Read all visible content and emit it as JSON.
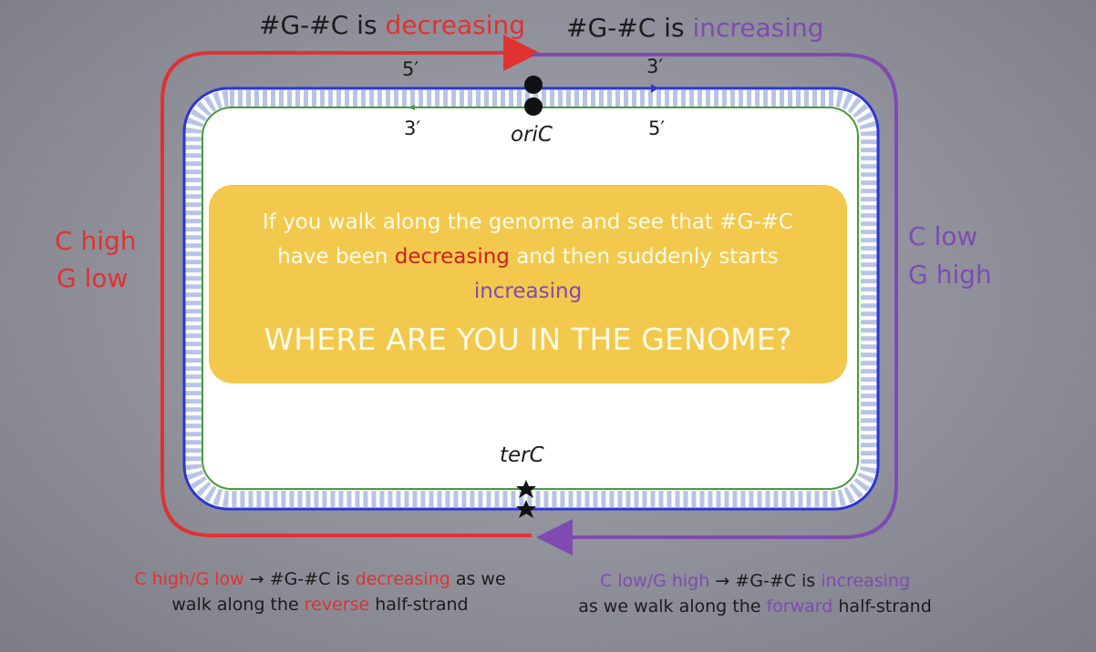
{
  "top": {
    "left_prefix": "#G-#C is ",
    "left_emph": "decreasing",
    "right_prefix": "#G-#C is ",
    "right_emph": "increasing"
  },
  "strand": {
    "top_left_5": "5′",
    "top_right_3": "3′",
    "inner_left_3": "3′",
    "inner_right_5": "5′"
  },
  "labels": {
    "oric": "oriC",
    "terc": "terC"
  },
  "sides": {
    "left_line1": "C high",
    "left_line2": "G low",
    "right_line1": "C low",
    "right_line2": "G high"
  },
  "callout": {
    "line1": "If you walk along the genome and see that  #G-#C",
    "line2_prefix": "have been ",
    "line2_emph": "decreasing",
    "line2_suffix": "  and then suddenly starts",
    "line3": "increasing",
    "question": "WHERE ARE YOU IN THE  GENOME?"
  },
  "caption_left": {
    "a": "C high/G low",
    "b": " → #G-#C is ",
    "c": "decreasing",
    "d": " as we",
    "e": "walk along the ",
    "f": "reverse",
    "g": " half-strand"
  },
  "caption_right": {
    "a": "C low/G high",
    "b": " → #G-#C is ",
    "c": "increasing",
    "d": "as we walk  along the ",
    "e": "forward",
    "f": " half-strand"
  },
  "colors": {
    "red": "#e03231",
    "purple": "#7f4bb3",
    "blue_strand": "#2b35d6",
    "green_strand": "#4a9a3a",
    "callout_bg": "#f2c94c"
  }
}
